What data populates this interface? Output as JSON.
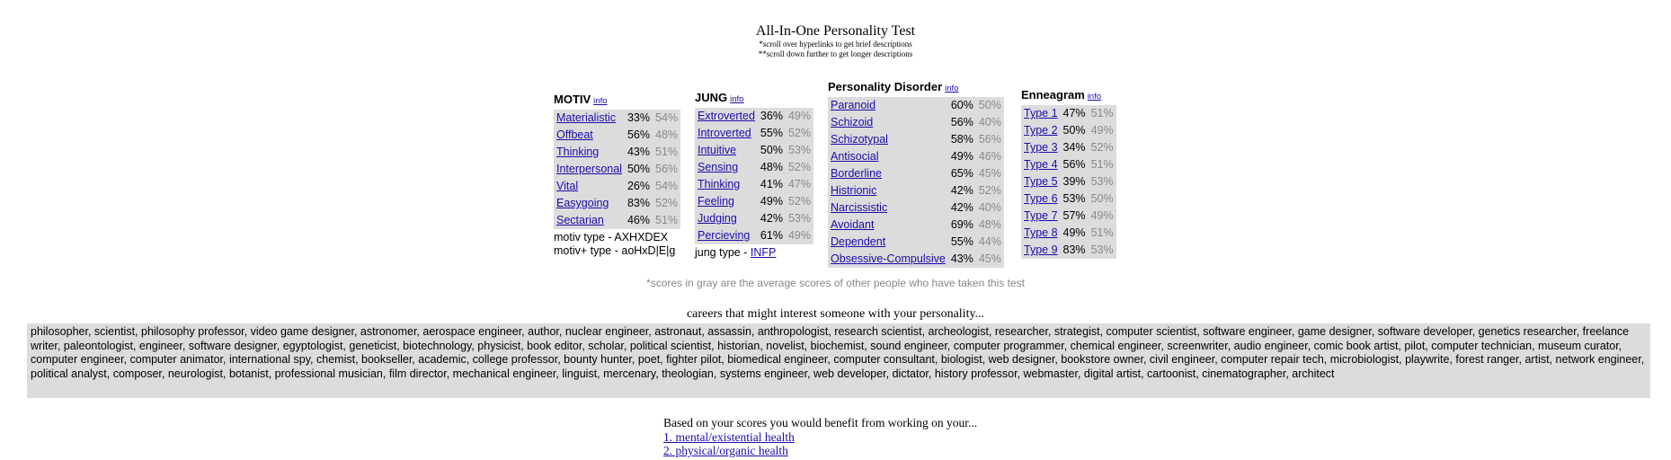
{
  "title": "All-In-One Personality Test",
  "notes": [
    "*scroll over hyperlinks to get brief descriptions",
    "**scroll down further to get longer descriptions"
  ],
  "info_label": "info",
  "motiv": {
    "heading": "MOTIV",
    "rows": [
      {
        "label": "Materialistic",
        "score": "33%",
        "avg": "54%"
      },
      {
        "label": "Offbeat",
        "score": "56%",
        "avg": "48%"
      },
      {
        "label": "Thinking",
        "score": "43%",
        "avg": "51%"
      },
      {
        "label": "Interpersonal",
        "score": "50%",
        "avg": "56%"
      },
      {
        "label": "Vital",
        "score": "26%",
        "avg": "54%"
      },
      {
        "label": "Easygoing",
        "score": "83%",
        "avg": "52%"
      },
      {
        "label": "Sectarian",
        "score": "46%",
        "avg": "51%"
      }
    ],
    "type_line": "motiv type - AXHXDEX",
    "plus_type_line": "motiv+ type - aoHxD|E|g"
  },
  "jung": {
    "heading": "JUNG",
    "rows": [
      {
        "label": "Extroverted",
        "score": "36%",
        "avg": "49%"
      },
      {
        "label": "Introverted",
        "score": "55%",
        "avg": "52%"
      },
      {
        "label": "Intuitive",
        "score": "50%",
        "avg": "53%"
      },
      {
        "label": "Sensing",
        "score": "48%",
        "avg": "52%"
      },
      {
        "label": "Thinking",
        "score": "41%",
        "avg": "47%"
      },
      {
        "label": "Feeling",
        "score": "49%",
        "avg": "52%"
      },
      {
        "label": "Judging",
        "score": "42%",
        "avg": "53%"
      },
      {
        "label": "Percieving",
        "score": "61%",
        "avg": "49%"
      }
    ],
    "type_prefix": "jung type - ",
    "type_value": "INFP"
  },
  "disorder": {
    "heading": "Personality Disorder",
    "rows": [
      {
        "label": "Paranoid",
        "score": "60%",
        "avg": "50%"
      },
      {
        "label": "Schizoid",
        "score": "56%",
        "avg": "40%"
      },
      {
        "label": "Schizotypal",
        "score": "58%",
        "avg": "56%"
      },
      {
        "label": "Antisocial",
        "score": "49%",
        "avg": "46%"
      },
      {
        "label": "Borderline",
        "score": "65%",
        "avg": "45%"
      },
      {
        "label": "Histrionic",
        "score": "42%",
        "avg": "52%"
      },
      {
        "label": "Narcissistic",
        "score": "42%",
        "avg": "40%"
      },
      {
        "label": "Avoidant",
        "score": "69%",
        "avg": "48%"
      },
      {
        "label": "Dependent",
        "score": "55%",
        "avg": "44%"
      },
      {
        "label": "Obsessive-Compulsive",
        "score": "43%",
        "avg": "45%"
      }
    ]
  },
  "enneagram": {
    "heading": "Enneagram",
    "rows": [
      {
        "label": "Type 1",
        "score": "47%",
        "avg": "51%"
      },
      {
        "label": "Type 2",
        "score": "50%",
        "avg": "49%"
      },
      {
        "label": "Type 3",
        "score": "34%",
        "avg": "52%"
      },
      {
        "label": "Type 4",
        "score": "56%",
        "avg": "51%"
      },
      {
        "label": "Type 5",
        "score": "39%",
        "avg": "53%"
      },
      {
        "label": "Type 6",
        "score": "53%",
        "avg": "50%"
      },
      {
        "label": "Type 7",
        "score": "57%",
        "avg": "49%"
      },
      {
        "label": "Type 8",
        "score": "49%",
        "avg": "51%"
      },
      {
        "label": "Type 9",
        "score": "83%",
        "avg": "53%"
      }
    ]
  },
  "gray_note": "*scores in gray are the average scores of other people who have taken this test",
  "careers_title": "careers that might interest someone with your personality...",
  "careers_text": "philosopher, scientist, philosophy professor, video game designer, astronomer, aerospace engineer, author, nuclear engineer, astronaut, assassin, anthropologist, research scientist, archeologist, researcher, strategist, computer scientist, software engineer, game designer, software developer, genetics researcher, freelance writer, paleontologist, engineer, software designer, egyptologist, geneticist, biotechnology, physicist, book editor, scholar, political scientist, historian, novelist, biochemist, sound engineer, computer programmer, chemical engineer, screenwriter, audio engineer, comic book artist, pilot, computer technician, museum curator, computer engineer, computer animator, international spy, chemist, bookseller, academic, college professor, bounty hunter, poet, fighter pilot, biomedical engineer, computer consultant, biologist, web designer, bookstore owner, civil engineer, computer repair tech, microbiologist, playwrite, forest ranger, artist, network engineer, political analyst, composer, neurologist, botanist, professional musician, film director, mechanical engineer, linguist, mercenary, theologian, systems engineer, web developer, dictator, history professor, webmaster, digital artist, cartoonist, cinematographer, architect",
  "benefit": {
    "intro": "Based on your scores you would benefit from working on your...",
    "links": [
      "1. mental/existential health",
      "2. physical/organic health"
    ]
  }
}
